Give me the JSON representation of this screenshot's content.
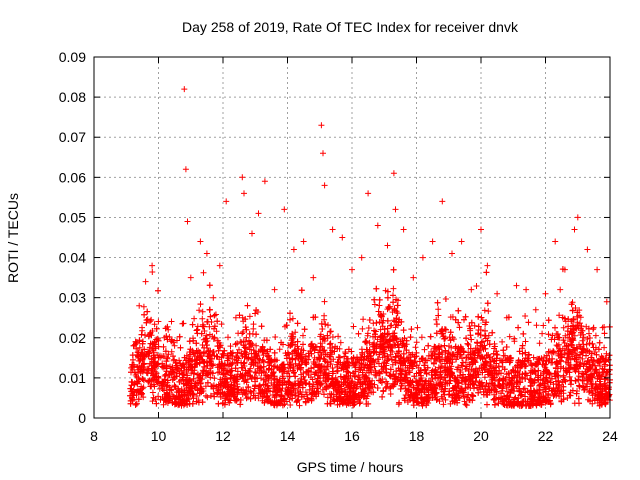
{
  "chart_data": {
    "type": "scatter",
    "title": "Day 258 of 2019, Rate Of TEC Index for receiver dnvk",
    "xlabel": "GPS time / hours",
    "ylabel": "ROTI / TECUs",
    "xlim": [
      8,
      24
    ],
    "ylim": [
      0,
      0.09
    ],
    "xticks": [
      "8",
      "10",
      "12",
      "14",
      "16",
      "18",
      "20",
      "22",
      "24"
    ],
    "yticks": [
      "0",
      "0.01",
      "0.02",
      "0.03",
      "0.04",
      "0.05",
      "0.06",
      "0.07",
      "0.08",
      "0.09"
    ],
    "grid": true,
    "marker": "+",
    "color": "#ff0000",
    "series": [
      {
        "name": "ROTI",
        "note": "dense scatter from ~9.1 h to 24 h; bulk between 0.003 and 0.03 TECU/s",
        "x": [
          9.2,
          9.4,
          9.6,
          9.8,
          10.0,
          10.3,
          10.5,
          10.8,
          10.85,
          10.9,
          11.0,
          11.3,
          11.5,
          11.7,
          11.9,
          12.1,
          12.4,
          12.6,
          12.65,
          12.9,
          13.1,
          13.3,
          13.6,
          13.9,
          14.2,
          14.5,
          14.8,
          15.05,
          15.1,
          15.15,
          15.4,
          15.7,
          16.0,
          16.3,
          16.5,
          16.8,
          17.1,
          17.3,
          17.35,
          17.6,
          17.9,
          18.2,
          18.5,
          18.8,
          19.1,
          19.4,
          19.7,
          20.0,
          20.2,
          20.5,
          20.8,
          21.1,
          21.4,
          21.7,
          22.0,
          22.3,
          22.6,
          22.9,
          23.0,
          23.3,
          23.6,
          23.9
        ],
        "y": [
          0.012,
          0.028,
          0.034,
          0.038,
          0.015,
          0.022,
          0.018,
          0.082,
          0.062,
          0.049,
          0.035,
          0.044,
          0.041,
          0.03,
          0.038,
          0.054,
          0.025,
          0.06,
          0.056,
          0.046,
          0.051,
          0.059,
          0.032,
          0.052,
          0.042,
          0.044,
          0.035,
          0.073,
          0.066,
          0.058,
          0.047,
          0.045,
          0.037,
          0.04,
          0.056,
          0.048,
          0.043,
          0.061,
          0.052,
          0.047,
          0.035,
          0.04,
          0.044,
          0.054,
          0.041,
          0.044,
          0.032,
          0.047,
          0.038,
          0.031,
          0.025,
          0.033,
          0.032,
          0.027,
          0.031,
          0.044,
          0.037,
          0.047,
          0.05,
          0.042,
          0.037,
          0.029
        ]
      }
    ]
  }
}
